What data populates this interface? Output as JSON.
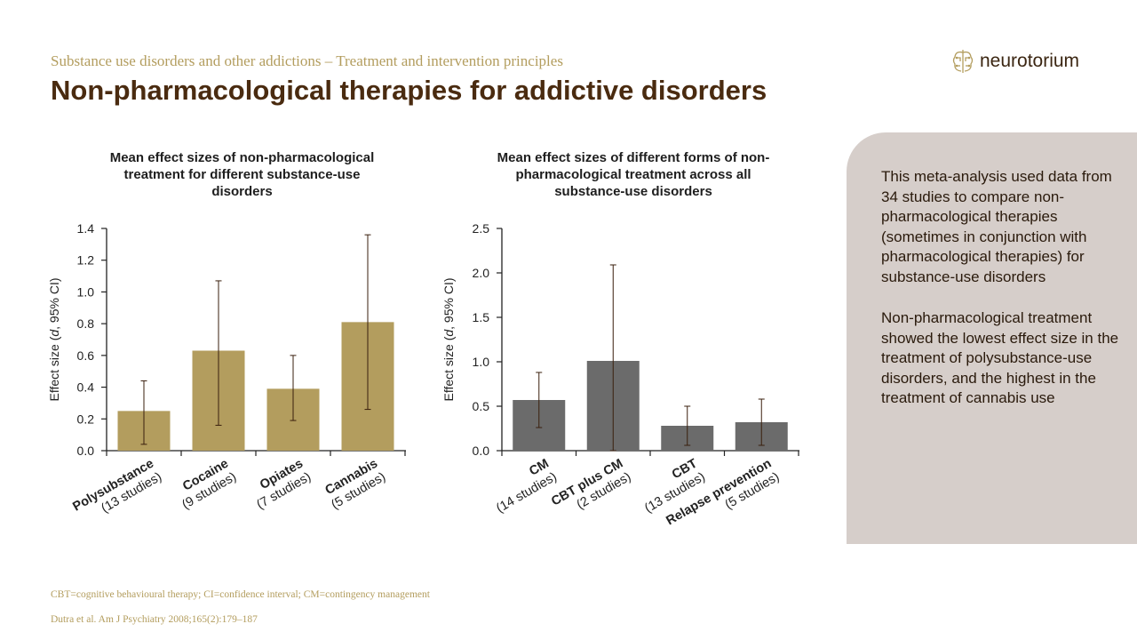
{
  "header": {
    "subtitle": "Substance use disorders and other addictions – Treatment and intervention principles",
    "title": "Non-pharmacological therapies for addictive disorders"
  },
  "logo": {
    "text": "neurotorium",
    "icon": "brain-circuit-icon"
  },
  "sidebar": {
    "paragraph1": "This meta-analysis used data from 34 studies to compare non-pharmacological therapies (sometimes in conjunction with pharmacological therapies) for substance-use disorders",
    "paragraph2": "Non-pharmacological treatment showed the lowest effect size in the treatment of polysubstance-use disorders, and the highest in the treatment of cannabis use",
    "background_color": "#d6ceca"
  },
  "footnotes": {
    "abbreviations": "CBT=cognitive behavioural therapy; CI=confidence interval; CM=contingency management",
    "reference": "Dutra et al. Am J Psychiatry 2008;165(2):179–187"
  },
  "chart_data": [
    {
      "type": "bar",
      "title": "Mean effect sizes of non-pharmacological treatment for different substance-use disorders",
      "ylabel_prefix": "Effect size (",
      "ylabel_italic": "d",
      "ylabel_suffix": ", 95% CI)",
      "ylim": [
        0,
        1.4
      ],
      "yticks": [
        "0.0",
        "0.2",
        "0.4",
        "0.6",
        "0.8",
        "1.0",
        "1.2",
        "1.4"
      ],
      "categories": [
        "Polysubstance",
        "Cocaine",
        "Opiates",
        "Cannabis"
      ],
      "category_notes": [
        "(13 studies)",
        "(9 studies)",
        "(7 studies)",
        "(5 studies)"
      ],
      "values": [
        0.25,
        0.63,
        0.39,
        0.81
      ],
      "ci_low": [
        0.04,
        0.16,
        0.19,
        0.26
      ],
      "ci_high": [
        0.44,
        1.07,
        0.6,
        1.36
      ],
      "color": "#b39d5e",
      "grid": false
    },
    {
      "type": "bar",
      "title": "Mean effect sizes of different forms of non-pharmacological treatment across all substance-use disorders",
      "ylabel_prefix": "Effect size (",
      "ylabel_italic": "d",
      "ylabel_suffix": ", 95% CI)",
      "ylim": [
        0,
        2.5
      ],
      "yticks": [
        "0.0",
        "0.5",
        "1.0",
        "1.5",
        "2.0",
        "2.5"
      ],
      "categories": [
        "CM",
        "CBT plus CM",
        "CBT",
        "Relapse prevention"
      ],
      "category_notes": [
        "(14 studies)",
        "(2 studies)",
        "(13 studies)",
        "(5 studies)"
      ],
      "values": [
        0.57,
        1.01,
        0.28,
        0.32
      ],
      "ci_low": [
        0.26,
        0.0,
        0.06,
        0.06
      ],
      "ci_high": [
        0.88,
        2.09,
        0.5,
        0.58
      ],
      "color": "#6b6b6b",
      "grid": false
    }
  ]
}
